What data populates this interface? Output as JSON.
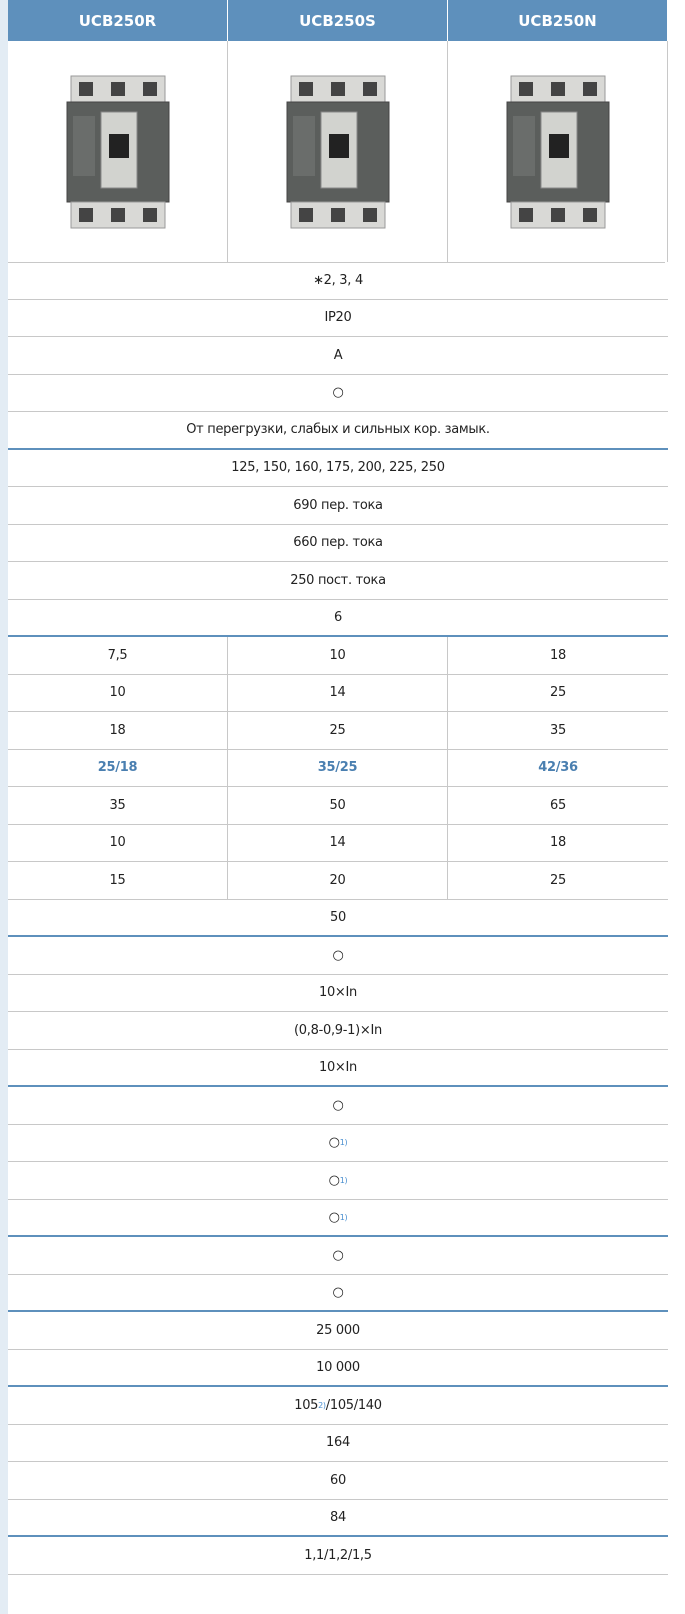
{
  "columns": [
    "UCB250R",
    "UCB250S",
    "UCB250N"
  ],
  "rows": [
    {
      "text": "∗2, 3, 4"
    },
    {
      "text": "IP20"
    },
    {
      "text": "A"
    },
    {
      "text": "○"
    },
    {
      "text": "От перегрузки, слабых и сильных кор. замык.",
      "group_end": true
    },
    {
      "text": "125, 150, 160, 175, 200, 225, 250"
    },
    {
      "text": "690 пер. тока"
    },
    {
      "text": "660 пер. тока"
    },
    {
      "text": "250 пост. тока"
    },
    {
      "text": "6",
      "group_end": true
    },
    {
      "cells": [
        "7,5",
        "10",
        "18"
      ]
    },
    {
      "cells": [
        "10",
        "14",
        "25"
      ]
    },
    {
      "cells": [
        "18",
        "25",
        "35"
      ]
    },
    {
      "cells": [
        "25/18",
        "35/25",
        "42/36"
      ],
      "highlight": true
    },
    {
      "cells": [
        "35",
        "50",
        "65"
      ]
    },
    {
      "cells": [
        "10",
        "14",
        "18"
      ]
    },
    {
      "cells": [
        "15",
        "20",
        "25"
      ]
    },
    {
      "text": "50",
      "group_end": true
    },
    {
      "text": "○"
    },
    {
      "text": "10×In"
    },
    {
      "text": "(0,8-0,9-1)×In"
    },
    {
      "text": "10×In",
      "group_end": true
    },
    {
      "text": "○"
    },
    {
      "text": "○",
      "sup": "1)"
    },
    {
      "text": "○",
      "sup": "1)"
    },
    {
      "text": "○",
      "sup": "1)",
      "group_end": true
    },
    {
      "text": "○"
    },
    {
      "text": "○",
      "group_end": true
    },
    {
      "text": "25 000"
    },
    {
      "text": "10 000",
      "group_end": true
    },
    {
      "text": "105",
      "sup": "2)",
      "after": "/105/140"
    },
    {
      "text": "164"
    },
    {
      "text": "60"
    },
    {
      "text": "84",
      "group_end": true
    },
    {
      "text": "1,1/1,2/1,5"
    }
  ]
}
